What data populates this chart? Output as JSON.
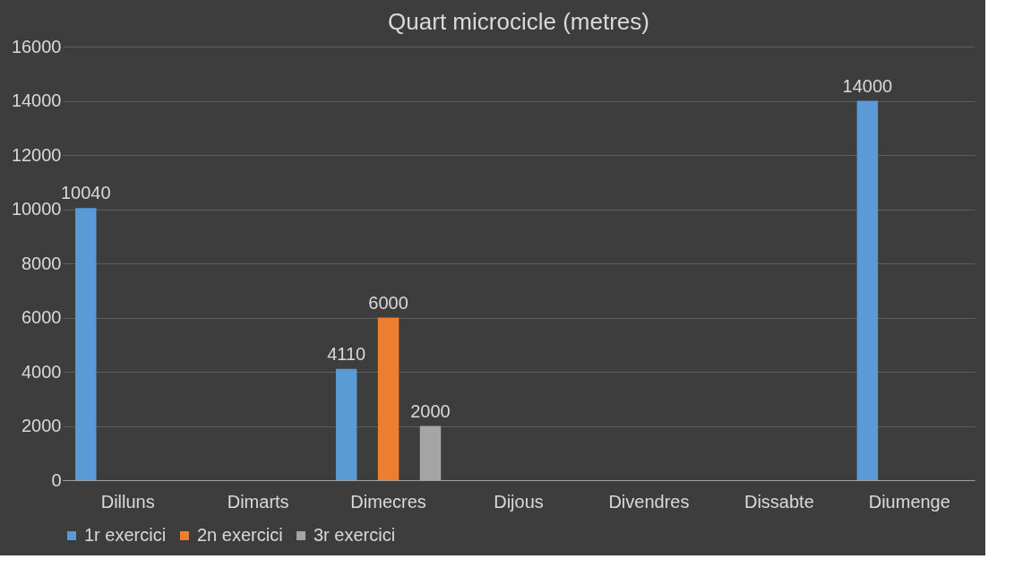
{
  "chart_data": {
    "type": "bar",
    "title": "Quart microcicle (metres)",
    "categories": [
      "Dilluns",
      "Dimarts",
      "Dimecres",
      "Dijous",
      "Divendres",
      "Dissabte",
      "Diumenge"
    ],
    "series": [
      {
        "name": "1r exercici",
        "color": "#5b9bd5",
        "values": [
          10040,
          null,
          4110,
          null,
          null,
          null,
          14000
        ]
      },
      {
        "name": "2n exercici",
        "color": "#ed7d31",
        "values": [
          null,
          null,
          6000,
          null,
          null,
          null,
          null
        ]
      },
      {
        "name": "3r exercici",
        "color": "#a5a5a5",
        "values": [
          null,
          null,
          2000,
          null,
          null,
          null,
          null
        ]
      }
    ],
    "ylim": [
      0,
      16000
    ],
    "yticks": [
      0,
      2000,
      4000,
      6000,
      8000,
      10000,
      12000,
      14000,
      16000
    ],
    "grid": "y",
    "legend": "bottom",
    "data_labels": true
  }
}
